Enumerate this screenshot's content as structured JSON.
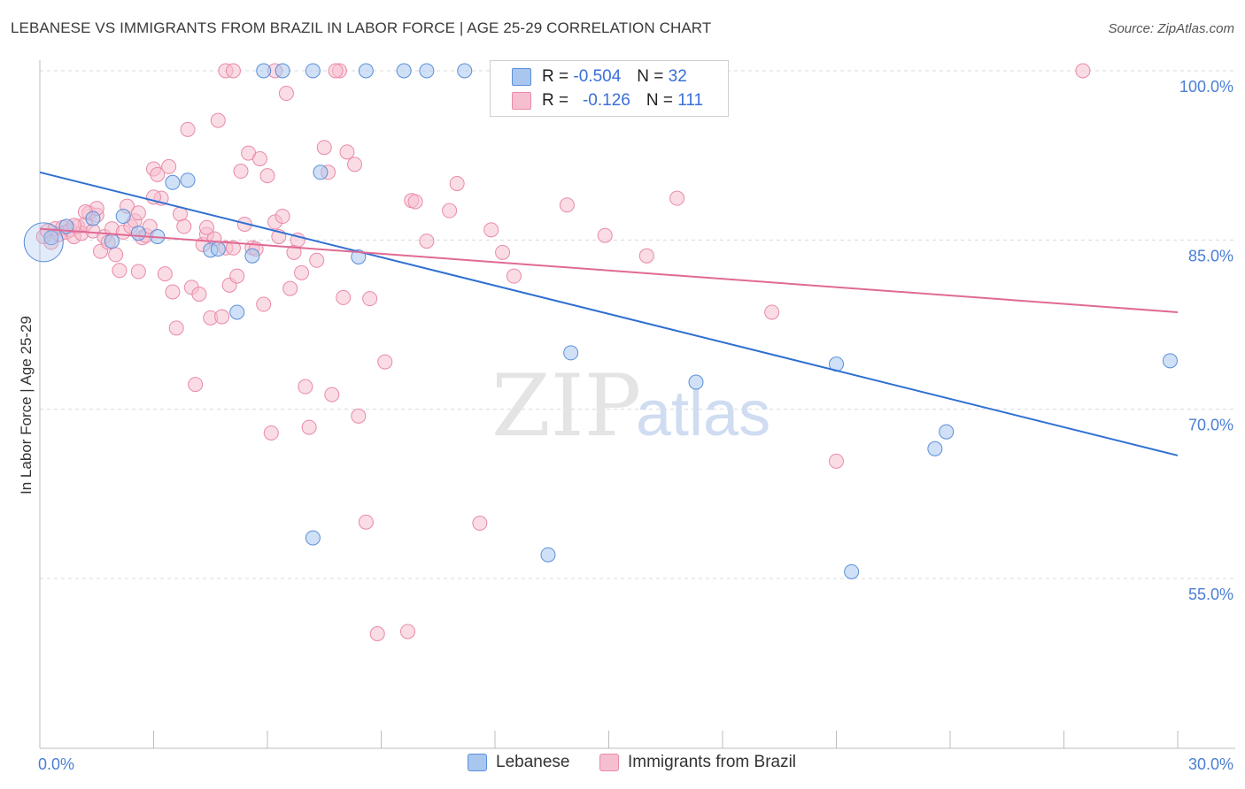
{
  "title": "LEBANESE VS IMMIGRANTS FROM BRAZIL IN LABOR FORCE | AGE 25-29 CORRELATION CHART",
  "source": "Source: ZipAtlas.com",
  "watermark": {
    "zip": "ZIP",
    "atlas": "atlas"
  },
  "legend": {
    "r_label": "R =",
    "n_label": "N =",
    "series1": {
      "r": "-0.504",
      "n": "32"
    },
    "series2": {
      "r": "-0.126",
      "n": "111"
    }
  },
  "colors": {
    "lebanese_fill": "#a9c6ef",
    "lebanese_stroke": "#5b8fd9",
    "lebanese_line": "#3070d0",
    "brazil_fill": "#f6bfd0",
    "brazil_stroke": "#e98aa8",
    "brazil_line": "#e06a95",
    "tick_label": "#4a7fd4"
  },
  "chart_data": {
    "type": "scatter",
    "title": "LEBANESE VS IMMIGRANTS FROM BRAZIL IN LABOR FORCE | AGE 25-29 CORRELATION CHART",
    "xlabel": "",
    "ylabel": "In Labor Force | Age 25-29",
    "xlim": [
      0,
      30
    ],
    "ylim": [
      40,
      101
    ],
    "x_tick_labels": [
      {
        "value": 0,
        "label": "0.0%"
      },
      {
        "value": 30,
        "label": "30.0%"
      }
    ],
    "y_tick_labels": [
      {
        "value": 100,
        "label": "100.0%"
      },
      {
        "value": 85,
        "label": "85.0%"
      },
      {
        "value": 70,
        "label": "70.0%"
      },
      {
        "value": 55,
        "label": "55.0%"
      }
    ],
    "grid": true,
    "legend_position": "top-center",
    "series": [
      {
        "name": "Lebanese",
        "r": -0.504,
        "n": 32,
        "trend": [
          [
            0,
            91.0
          ],
          [
            30,
            65.9
          ]
        ],
        "points": [
          [
            0.3,
            85.2
          ],
          [
            0.7,
            86.2
          ],
          [
            1.4,
            86.9
          ],
          [
            1.9,
            84.9
          ],
          [
            2.2,
            87.1
          ],
          [
            2.6,
            85.6
          ],
          [
            3.1,
            85.3
          ],
          [
            3.5,
            90.1
          ],
          [
            3.9,
            90.3
          ],
          [
            4.5,
            84.1
          ],
          [
            4.7,
            84.2
          ],
          [
            5.2,
            78.6
          ],
          [
            5.6,
            83.6
          ],
          [
            5.9,
            100.0
          ],
          [
            6.4,
            100.0
          ],
          [
            7.2,
            58.6
          ],
          [
            7.2,
            100.0
          ],
          [
            7.4,
            91.0
          ],
          [
            8.4,
            83.5
          ],
          [
            8.6,
            100.0
          ],
          [
            9.6,
            100.0
          ],
          [
            10.2,
            100.0
          ],
          [
            11.2,
            100.0
          ],
          [
            13.4,
            57.1
          ],
          [
            14.0,
            75.0
          ],
          [
            17.3,
            72.4
          ],
          [
            21.0,
            74.0
          ],
          [
            21.4,
            55.6
          ],
          [
            23.6,
            66.5
          ],
          [
            23.9,
            68.0
          ],
          [
            29.8,
            74.3
          ],
          [
            13.0,
            100.0
          ]
        ]
      },
      {
        "name": "Immigrants from Brazil",
        "r": -0.126,
        "n": 111,
        "trend": [
          [
            0,
            86.0
          ],
          [
            30,
            78.6
          ]
        ],
        "points": [
          [
            0.1,
            85.3
          ],
          [
            0.2,
            85.8
          ],
          [
            0.3,
            84.8
          ],
          [
            0.4,
            86.0
          ],
          [
            0.5,
            85.5
          ],
          [
            0.6,
            86.1
          ],
          [
            0.7,
            85.7
          ],
          [
            0.8,
            85.9
          ],
          [
            0.9,
            85.3
          ],
          [
            1.0,
            86.2
          ],
          [
            1.1,
            85.6
          ],
          [
            1.2,
            86.4
          ],
          [
            1.3,
            87.4
          ],
          [
            1.4,
            85.8
          ],
          [
            1.5,
            87.2
          ],
          [
            1.6,
            84.0
          ],
          [
            1.7,
            85.3
          ],
          [
            1.8,
            84.8
          ],
          [
            1.9,
            86.0
          ],
          [
            2.0,
            83.7
          ],
          [
            2.1,
            82.3
          ],
          [
            2.2,
            85.7
          ],
          [
            2.3,
            88.0
          ],
          [
            2.4,
            86.2
          ],
          [
            2.5,
            86.7
          ],
          [
            2.6,
            82.2
          ],
          [
            2.7,
            85.2
          ],
          [
            2.8,
            85.4
          ],
          [
            2.9,
            86.2
          ],
          [
            3.0,
            91.3
          ],
          [
            3.1,
            90.8
          ],
          [
            3.2,
            88.7
          ],
          [
            3.3,
            82.0
          ],
          [
            3.4,
            91.5
          ],
          [
            3.5,
            80.4
          ],
          [
            3.6,
            77.2
          ],
          [
            3.7,
            87.3
          ],
          [
            3.8,
            86.2
          ],
          [
            3.9,
            94.8
          ],
          [
            4.0,
            80.8
          ],
          [
            4.1,
            72.2
          ],
          [
            4.2,
            80.2
          ],
          [
            4.3,
            84.6
          ],
          [
            4.4,
            85.5
          ],
          [
            4.5,
            78.1
          ],
          [
            4.6,
            85.1
          ],
          [
            4.7,
            95.6
          ],
          [
            4.8,
            78.2
          ],
          [
            4.9,
            84.3
          ],
          [
            5.0,
            81.0
          ],
          [
            5.1,
            84.3
          ],
          [
            5.2,
            81.8
          ],
          [
            5.3,
            91.1
          ],
          [
            5.4,
            86.4
          ],
          [
            5.5,
            92.7
          ],
          [
            5.6,
            84.3
          ],
          [
            5.7,
            84.2
          ],
          [
            5.8,
            92.2
          ],
          [
            5.9,
            79.3
          ],
          [
            6.0,
            90.7
          ],
          [
            6.1,
            67.9
          ],
          [
            6.2,
            86.6
          ],
          [
            6.3,
            85.3
          ],
          [
            6.4,
            87.1
          ],
          [
            6.5,
            98.0
          ],
          [
            6.6,
            80.7
          ],
          [
            6.7,
            83.9
          ],
          [
            6.8,
            85.0
          ],
          [
            6.9,
            82.1
          ],
          [
            7.0,
            72.0
          ],
          [
            7.1,
            68.4
          ],
          [
            7.3,
            83.2
          ],
          [
            7.5,
            93.2
          ],
          [
            7.6,
            91.0
          ],
          [
            7.7,
            71.3
          ],
          [
            7.9,
            100.0
          ],
          [
            8.0,
            79.9
          ],
          [
            8.1,
            92.8
          ],
          [
            8.3,
            91.7
          ],
          [
            8.4,
            69.4
          ],
          [
            8.6,
            60.0
          ],
          [
            8.7,
            79.8
          ],
          [
            8.9,
            50.1
          ],
          [
            9.1,
            74.2
          ],
          [
            9.7,
            50.3
          ],
          [
            9.8,
            88.5
          ],
          [
            9.9,
            88.4
          ],
          [
            10.2,
            84.9
          ],
          [
            10.8,
            87.6
          ],
          [
            11.0,
            90.0
          ],
          [
            11.6,
            59.9
          ],
          [
            11.9,
            85.9
          ],
          [
            12.2,
            83.9
          ],
          [
            12.5,
            81.8
          ],
          [
            13.9,
            88.1
          ],
          [
            14.9,
            85.4
          ],
          [
            16.0,
            83.6
          ],
          [
            16.8,
            88.7
          ],
          [
            19.3,
            78.6
          ],
          [
            21.0,
            65.4
          ],
          [
            27.5,
            100.0
          ],
          [
            4.9,
            100.0
          ],
          [
            5.1,
            100.0
          ],
          [
            6.2,
            100.0
          ],
          [
            7.8,
            100.0
          ],
          [
            3.0,
            88.8
          ],
          [
            2.6,
            87.4
          ],
          [
            1.5,
            87.8
          ],
          [
            0.9,
            86.3
          ],
          [
            1.2,
            87.5
          ],
          [
            4.4,
            86.1
          ]
        ]
      }
    ]
  },
  "bottom_legend": {
    "item1": "Lebanese",
    "item2": "Immigrants from Brazil"
  }
}
